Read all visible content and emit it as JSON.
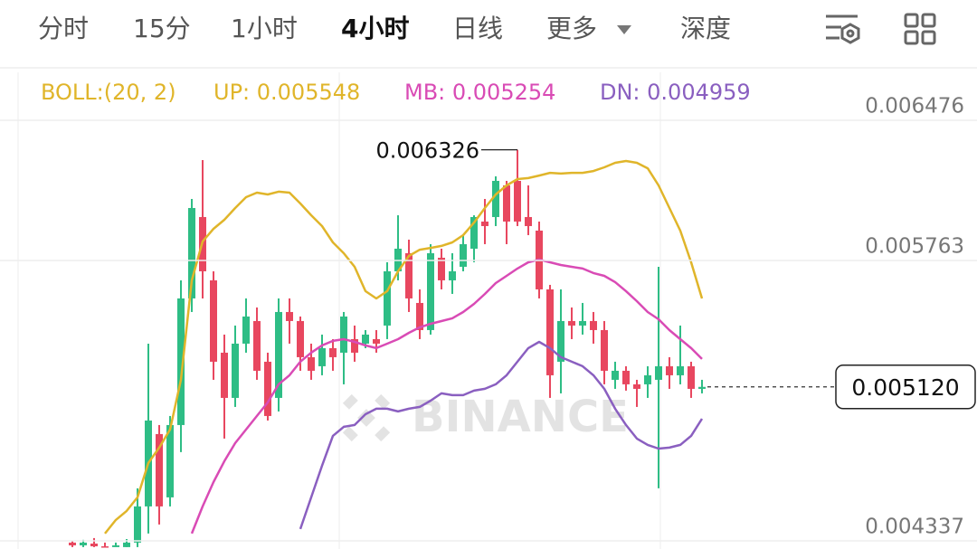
{
  "tabs": [
    "分时",
    "15分",
    "1小时",
    "4小时",
    "日线",
    "更多",
    "深度"
  ],
  "active_tab": 3,
  "chart_data": {
    "type": "candlestick",
    "indicator": "BOLL:(20, 2)",
    "up_color": "#2ebd85",
    "down_color": "#e8475f",
    "open": [
      0.004328,
      0.004314,
      0.004323,
      0.004309,
      0.004305,
      0.004305,
      0.004328,
      0.004512,
      0.00488,
      0.004558,
      0.004926,
      0.00557,
      0.005984,
      0.005662,
      0.005294,
      0.005064,
      0.00534,
      0.005455,
      0.005248,
      0.005064,
      0.005501,
      0.005455,
      0.005271,
      0.005225,
      0.005317,
      0.005294,
      0.005363,
      0.00534,
      0.005363,
      0.005432,
      0.005708,
      0.0058,
      0.005547,
      0.005409,
      0.005777,
      0.005662,
      0.005731,
      0.005823,
      0.005961,
      0.005984,
      0.006145,
      0.006168,
      0.005984,
      0.005915,
      0.005616,
      0.005248,
      0.005455,
      0.005432,
      0.005455,
      0.005409,
      0.005156,
      0.005202,
      0.005133,
      0.005133,
      0.005156,
      0.005225,
      0.005179,
      0.005225,
      0.00511
    ],
    "high": [
      0.004337,
      0.004342,
      0.004351,
      0.004328,
      0.004328,
      0.004346,
      0.004604,
      0.00534,
      0.004926,
      0.004972,
      0.005662,
      0.006076,
      0.006274,
      0.005708,
      0.005386,
      0.005432,
      0.00557,
      0.005524,
      0.005294,
      0.00557,
      0.00557,
      0.005478,
      0.00534,
      0.005386,
      0.005363,
      0.005501,
      0.005432,
      0.005409,
      0.005409,
      0.005754,
      0.005993,
      0.005869,
      0.005616,
      0.005846,
      0.005823,
      0.0058,
      0.005892,
      0.005993,
      0.006076,
      0.006191,
      0.006168,
      0.006326,
      0.006145,
      0.005961,
      0.005639,
      0.005616,
      0.005524,
      0.005547,
      0.005501,
      0.005455,
      0.005248,
      0.005225,
      0.005156,
      0.005225,
      0.005731,
      0.005271,
      0.005432,
      0.005248,
      0.005156
    ],
    "low": [
      0.004305,
      0.004305,
      0.004305,
      0.004305,
      0.004305,
      0.004305,
      0.004305,
      0.004374,
      0.00442,
      0.004512,
      0.004788,
      0.005501,
      0.00557,
      0.005156,
      0.004857,
      0.005018,
      0.005294,
      0.005156,
      0.004949,
      0.004995,
      0.00534,
      0.005202,
      0.005156,
      0.005179,
      0.005202,
      0.005133,
      0.005248,
      0.005317,
      0.005294,
      0.005363,
      0.005662,
      0.005501,
      0.005363,
      0.005386,
      0.005616,
      0.005593,
      0.005708,
      0.005754,
      0.005846,
      0.005938,
      0.005846,
      0.005938,
      0.005892,
      0.00557,
      0.005064,
      0.005087,
      0.005363,
      0.005386,
      0.00534,
      0.005133,
      0.00511,
      0.005101,
      0.005018,
      0.005064,
      0.004604,
      0.00511,
      0.005133,
      0.005064,
      0.005087
    ],
    "close": [
      0.004314,
      0.004328,
      0.004309,
      0.004305,
      0.004314,
      0.004328,
      0.004512,
      0.004949,
      0.004512,
      0.004926,
      0.00557,
      0.00603,
      0.005708,
      0.005248,
      0.005064,
      0.00534,
      0.005478,
      0.005202,
      0.004972,
      0.005501,
      0.005455,
      0.005271,
      0.005202,
      0.005317,
      0.005271,
      0.005478,
      0.005294,
      0.005386,
      0.00534,
      0.005708,
      0.005823,
      0.00557,
      0.005409,
      0.0058,
      0.005662,
      0.005708,
      0.005846,
      0.005984,
      0.005938,
      0.006168,
      0.005961,
      0.005961,
      0.005938,
      0.005616,
      0.005179,
      0.005455,
      0.005432,
      0.005455,
      0.005409,
      0.005202,
      0.005202,
      0.005133,
      0.00511,
      0.005179,
      0.005225,
      0.005179,
      0.005225,
      0.00511,
      0.00512
    ],
    "series": [
      {
        "name": "UP: 0.005548",
        "color": "#e0b52a",
        "values": [
          null,
          null,
          null,
          0.004374,
          0.004443,
          0.004489,
          0.004558,
          0.004733,
          0.004811,
          0.004903,
          0.005156,
          0.005662,
          0.00586,
          0.005924,
          0.00597,
          0.00603,
          0.006085,
          0.006108,
          0.006099,
          0.006113,
          0.006108,
          0.006053,
          0.005993,
          0.005938,
          0.005855,
          0.0058,
          0.005731,
          0.005607,
          0.00557,
          0.005607,
          0.005708,
          0.005786,
          0.005818,
          0.005827,
          0.005837,
          0.005855,
          0.005892,
          0.005956,
          0.00603,
          0.006099,
          0.006145,
          0.006177,
          0.006182,
          0.006195,
          0.006209,
          0.006205,
          0.006209,
          0.006209,
          0.006218,
          0.006237,
          0.00626,
          0.006269,
          0.00626,
          0.006232,
          0.006145,
          0.00603,
          0.005915,
          0.005754,
          0.00557
        ]
      },
      {
        "name": "MB: 0.005254",
        "color": "#d94bb5",
        "values": [
          null,
          null,
          null,
          null,
          null,
          null,
          null,
          null,
          null,
          null,
          null,
          0.004374,
          0.004512,
          0.004636,
          0.004742,
          0.004834,
          0.004903,
          0.004972,
          0.005041,
          0.005133,
          0.005179,
          0.005248,
          0.005294,
          0.005331,
          0.005354,
          0.005363,
          0.005349,
          0.005331,
          0.005317,
          0.00534,
          0.005363,
          0.005395,
          0.005423,
          0.005441,
          0.005455,
          0.005469,
          0.005501,
          0.005542,
          0.005593,
          0.005648,
          0.005685,
          0.005722,
          0.005754,
          0.005768,
          0.005754,
          0.00574,
          0.005731,
          0.005722,
          0.005699,
          0.005685,
          0.005653,
          0.005607,
          0.005556,
          0.005501,
          0.005464,
          0.005409,
          0.005363,
          0.005317,
          0.005262
        ]
      },
      {
        "name": "DN: 0.004959",
        "color": "#8a5fc0",
        "values": [
          null,
          null,
          null,
          null,
          null,
          null,
          null,
          null,
          null,
          null,
          null,
          null,
          null,
          null,
          null,
          null,
          null,
          null,
          null,
          null,
          null,
          0.004397,
          0.004558,
          0.004719,
          0.004871,
          0.004917,
          0.004926,
          0.004981,
          0.005009,
          0.005009,
          0.004995,
          0.005009,
          0.005018,
          0.00505,
          0.005087,
          0.005078,
          0.005078,
          0.005101,
          0.00511,
          0.005133,
          0.005179,
          0.005248,
          0.005317,
          0.005349,
          0.005317,
          0.005271,
          0.005248,
          0.005225,
          0.005179,
          0.00511,
          0.005009,
          0.004926,
          0.004857,
          0.004825,
          0.004806,
          0.004811,
          0.004825,
          0.004871,
          0.004958
        ]
      }
    ],
    "ylim": [
      0.0043,
      0.00672
    ],
    "yticks": [
      0.006476,
      0.005763,
      0.004337
    ],
    "grid": true,
    "high_marker": {
      "value": 0.006326
    },
    "last_price": {
      "value": 0.00512,
      "label": "0.005120"
    },
    "watermark": "BINANCE"
  }
}
